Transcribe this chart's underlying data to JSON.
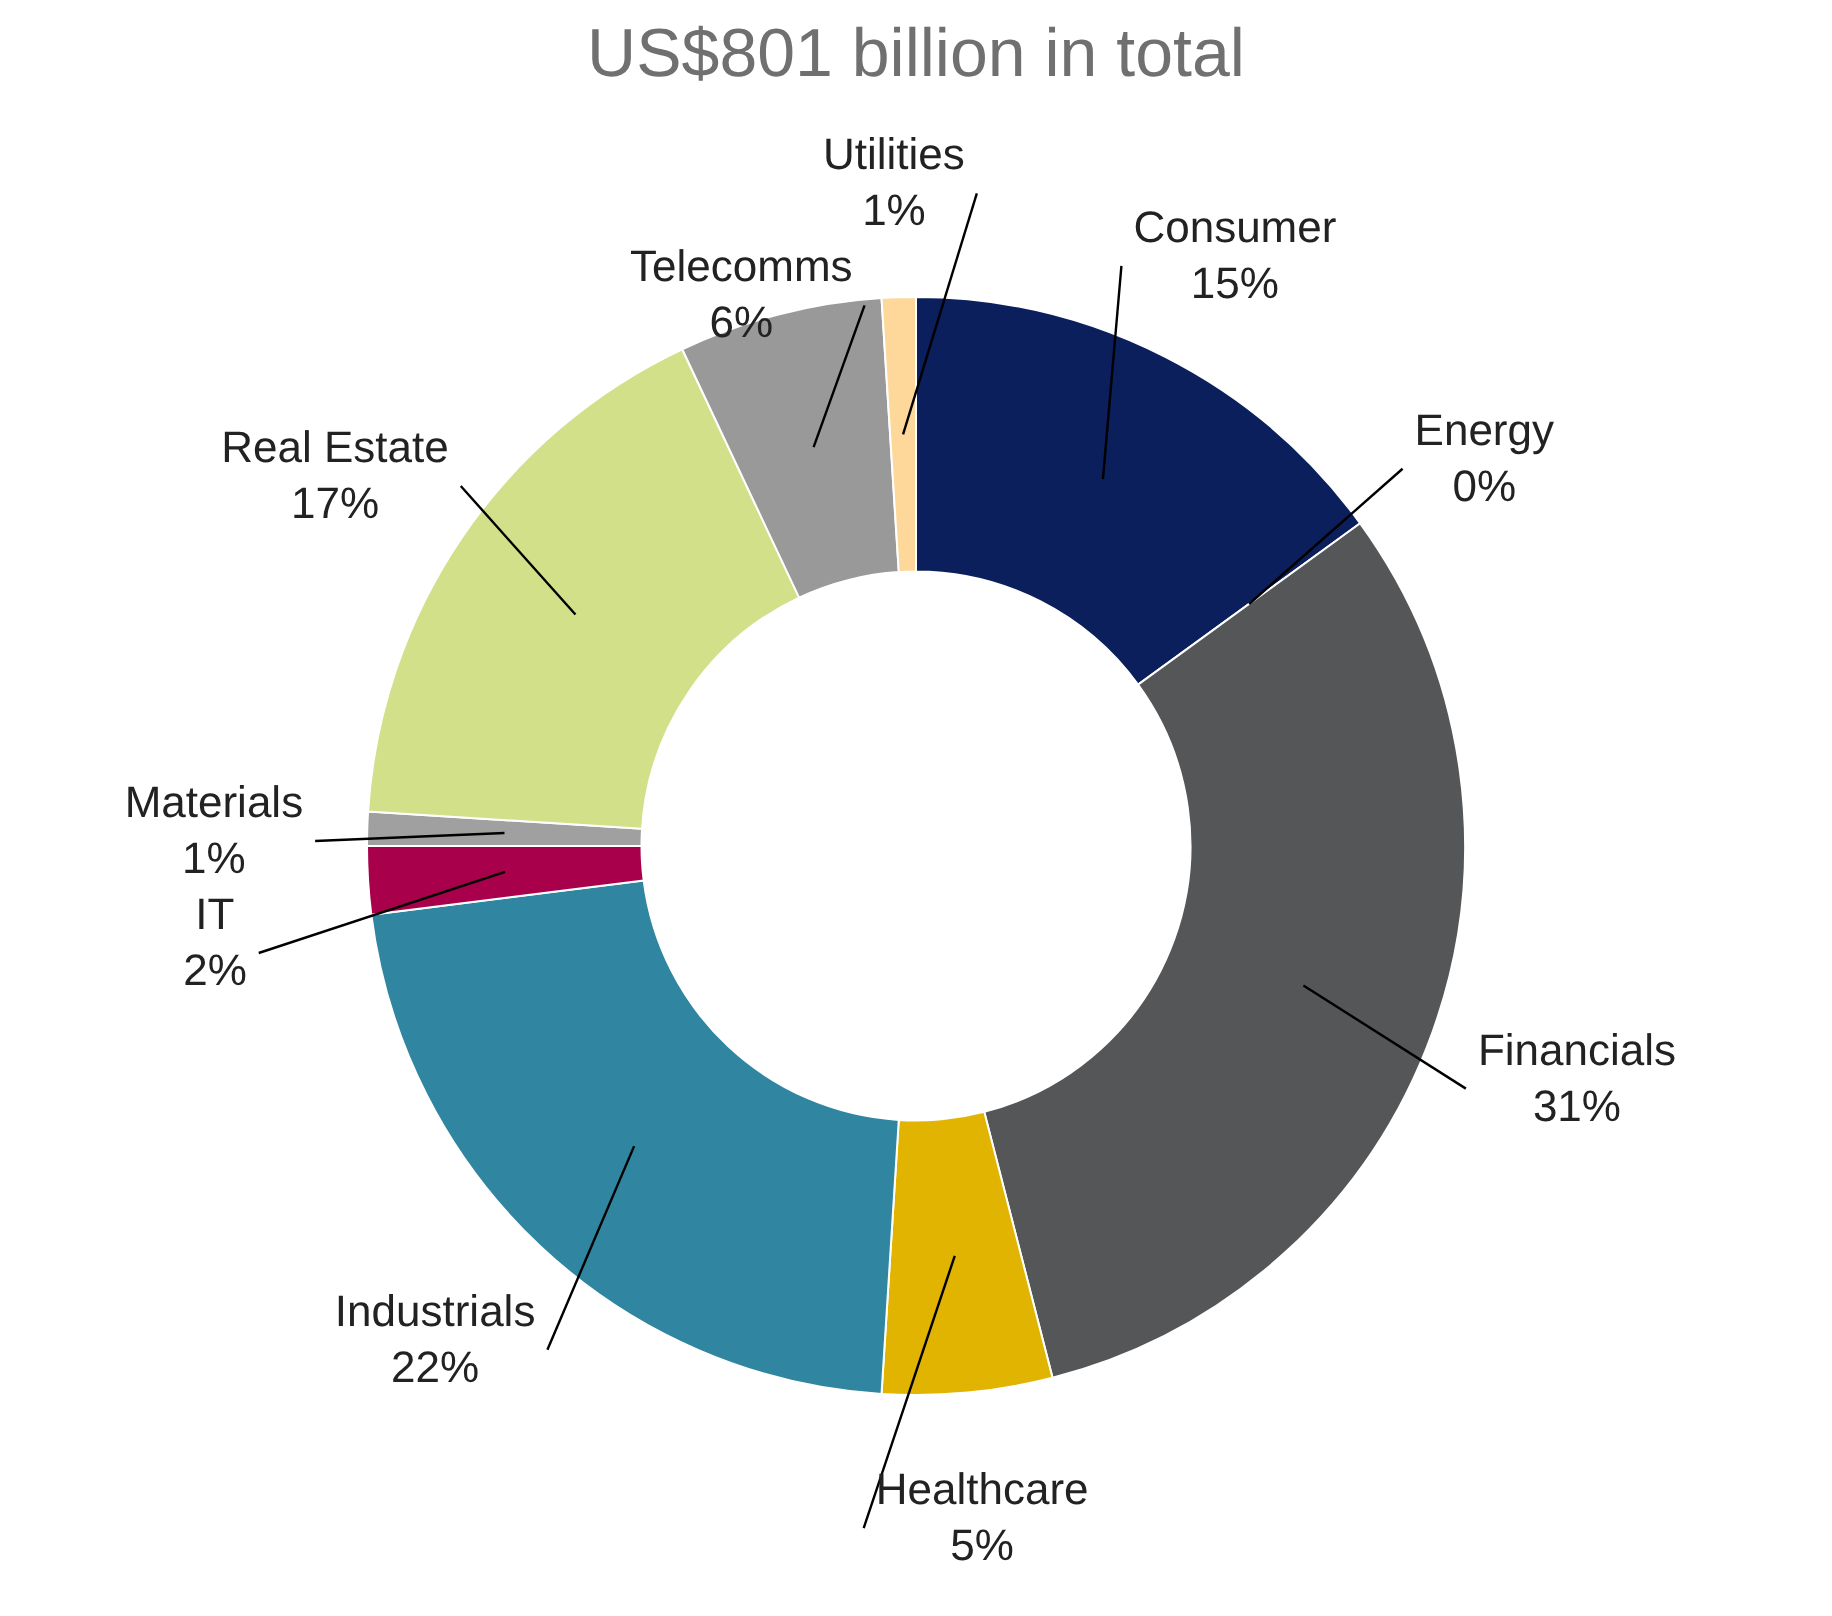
{
  "chart_data": {
    "type": "donut",
    "title": "US$801 billion in total",
    "categories": [
      "Consumer",
      "Energy",
      "Financials",
      "Healthcare",
      "Industrials",
      "IT",
      "Materials",
      "Real Estate",
      "Telecomms",
      "Utilities"
    ],
    "values": [
      15,
      0,
      31,
      5,
      22,
      2,
      1,
      17,
      6,
      1
    ],
    "colors": [
      "#0a1f5c",
      "#9bbb3a",
      "#545658",
      "#e0b400",
      "#3085a0",
      "#a8004a",
      "#a0a0a0",
      "#d2e08a",
      "#999999",
      "#fdd89a"
    ],
    "value_labels": [
      "15%",
      "0%",
      "31%",
      "5%",
      "22%",
      "2%",
      "1%",
      "17%",
      "6%",
      "1%"
    ],
    "legend": false
  }
}
